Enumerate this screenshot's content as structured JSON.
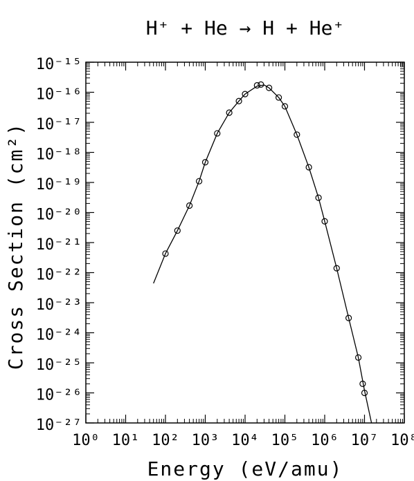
{
  "chart_data": {
    "type": "scatter",
    "title": "H⁺ + He → H + He⁺",
    "x_label": "Energy (eV/amu)",
    "y_label": "Cross Section (cm²)",
    "log_x": true,
    "log_y": true,
    "color": "#000000",
    "xlim": [
      1,
      100000000
    ],
    "ylim": [
      1e-27,
      1e-15
    ],
    "xticks": [
      {
        "value": 1,
        "label": "10⁰"
      },
      {
        "value": 10,
        "label": "10¹"
      },
      {
        "value": 100,
        "label": "10²"
      },
      {
        "value": 1000,
        "label": "10³"
      },
      {
        "value": 10000,
        "label": "10⁴"
      },
      {
        "value": 100000,
        "label": "10⁵"
      },
      {
        "value": 1000000,
        "label": "10⁶"
      },
      {
        "value": 10000000,
        "label": "10⁷"
      },
      {
        "value": 100000000,
        "label": "10⁸"
      }
    ],
    "yticks": [
      {
        "value": 1e-15,
        "label": "10⁻¹⁵"
      },
      {
        "value": 1e-16,
        "label": "10⁻¹⁶"
      },
      {
        "value": 1e-17,
        "label": "10⁻¹⁷"
      },
      {
        "value": 1e-18,
        "label": "10⁻¹⁸"
      },
      {
        "value": 1e-19,
        "label": "10⁻¹⁹"
      },
      {
        "value": 1e-20,
        "label": "10⁻²⁰"
      },
      {
        "value": 1e-21,
        "label": "10⁻²¹"
      },
      {
        "value": 1e-22,
        "label": "10⁻²²"
      },
      {
        "value": 1e-23,
        "label": "10⁻²³"
      },
      {
        "value": 1e-24,
        "label": "10⁻²⁴"
      },
      {
        "value": 1e-25,
        "label": "10⁻²⁵"
      },
      {
        "value": 1e-26,
        "label": "10⁻²⁶"
      },
      {
        "value": 1e-27,
        "label": "10⁻²⁷"
      }
    ],
    "points": {
      "x": [
        100,
        200,
        400,
        700,
        1000,
        2000,
        4000,
        7000,
        10000,
        20000,
        25000,
        40000,
        70000,
        100000,
        200000,
        400000,
        700000,
        1000000,
        2000000,
        4000000,
        7000000,
        9000000,
        10000000
      ],
      "y": [
        4.3e-22,
        2.5e-21,
        1.7e-20,
        1.1e-19,
        4.7e-19,
        4.3e-18,
        2.1e-17,
        5.1e-17,
        8.7e-17,
        1.7e-16,
        1.8e-16,
        1.4e-16,
        6.7e-17,
        3.4e-17,
        3.9e-18,
        3.2e-19,
        3.1e-20,
        5.1e-21,
        1.4e-22,
        3.1e-24,
        1.5e-25,
        2e-26,
        1e-26
      ]
    },
    "fit": {
      "x": [
        50,
        100,
        200,
        400,
        700,
        1000,
        2000,
        4000,
        7000,
        10000,
        20000,
        30000,
        40000,
        70000,
        100000,
        200000,
        400000,
        700000,
        1000000,
        2000000,
        4000000,
        7000000,
        10000000,
        15000000
      ],
      "y": [
        4.4e-23,
        4.3e-22,
        2.5e-21,
        1.7e-20,
        1.1e-19,
        4.7e-19,
        4.3e-18,
        2.1e-17,
        5.1e-17,
        8.7e-17,
        1.6e-16,
        1.75e-16,
        1.4e-16,
        6.7e-17,
        3.4e-17,
        3.9e-18,
        3.2e-19,
        3.1e-20,
        5.1e-21,
        1.4e-22,
        3.1e-24,
        1.5e-25,
        1.2e-26,
        1e-27
      ]
    }
  }
}
